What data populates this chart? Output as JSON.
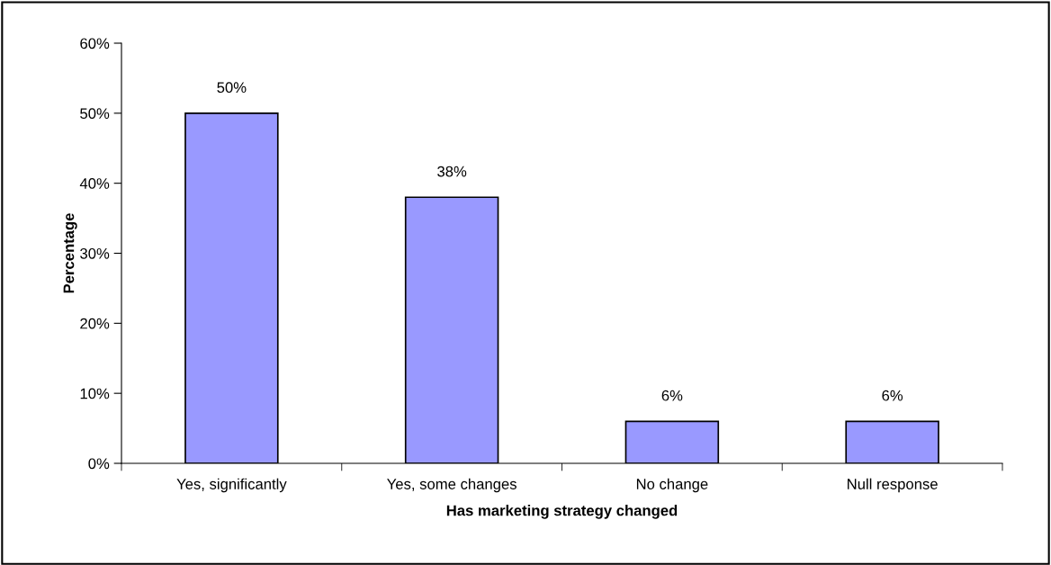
{
  "chart_data": {
    "type": "bar",
    "xlabel": "Has marketing strategy changed",
    "ylabel": "Percentage",
    "categories": [
      "Yes, significantly",
      "Yes, some changes",
      "No change",
      "Null response"
    ],
    "values": [
      50,
      38,
      6,
      6
    ],
    "color": "#9999ff",
    "value_labels": [
      "50%",
      "38%",
      "6%",
      "6%"
    ],
    "ylim": [
      0,
      60
    ],
    "yticks": [
      {
        "value": 0,
        "label": "0%"
      },
      {
        "value": 10,
        "label": "10%"
      },
      {
        "value": 20,
        "label": "20%"
      },
      {
        "value": 30,
        "label": "30%"
      },
      {
        "value": 40,
        "label": "40%"
      },
      {
        "value": 50,
        "label": "50%"
      },
      {
        "value": 60,
        "label": "60%"
      }
    ],
    "grid": false
  }
}
